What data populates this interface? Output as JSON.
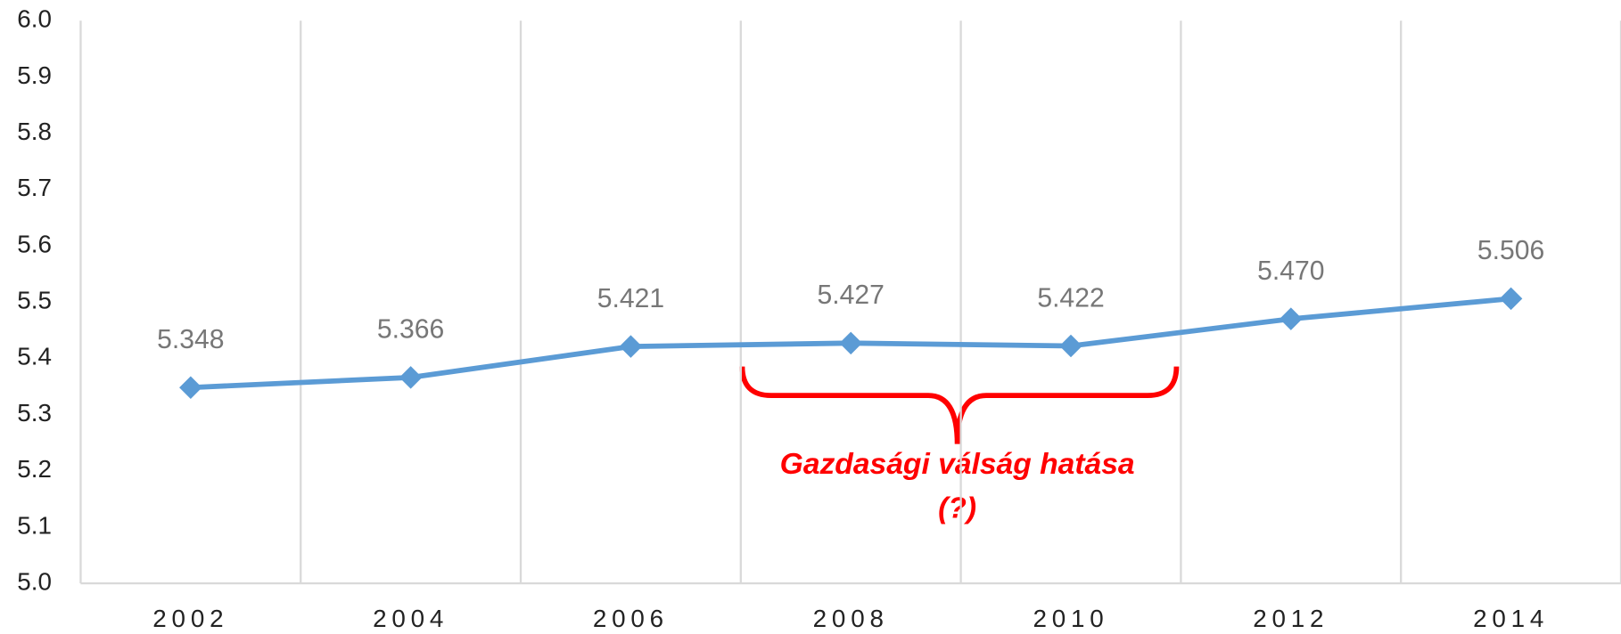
{
  "chart_data": {
    "type": "line",
    "categories": [
      "2002",
      "2004",
      "2006",
      "2008",
      "2010",
      "2012",
      "2014"
    ],
    "series": [
      {
        "color": "#5b9bd5",
        "values": [
          5.348,
          5.366,
          5.421,
          5.427,
          5.422,
          5.47,
          5.506
        ],
        "value_labels": [
          "5.348",
          "5.366",
          "5.421",
          "5.427",
          "5.422",
          "5.470",
          "5.506"
        ]
      }
    ],
    "ylim": [
      5.0,
      6.0
    ],
    "yticks": [
      {
        "value": 5.0,
        "label": "5.0"
      },
      5.1,
      5.2,
      5.3,
      5.4,
      5.5,
      5.6,
      5.7,
      5.8,
      5.9,
      {
        "value": 6.0,
        "label": "6.0"
      }
    ],
    "grid": true,
    "annotation": {
      "lines": [
        "Gazdasági válság hatása",
        "(?)"
      ],
      "color": "#ff0000"
    }
  }
}
